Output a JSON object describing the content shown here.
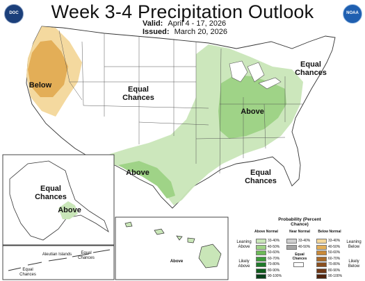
{
  "header": {
    "title": "Week 3-4 Precipitation Outlook",
    "valid_label": "Valid:",
    "valid_value": "April 4 - 17, 2026",
    "issued_label": "Issued:",
    "issued_value": "March 20, 2026"
  },
  "logos": {
    "left": "DOC",
    "right": "NOAA"
  },
  "map_labels": {
    "below": "Below",
    "equal_west": "Equal Chances",
    "above_south": "Above",
    "above_east": "Above",
    "equal_ne": "Equal Chances",
    "equal_se": "Equal Chances",
    "equal_ak": "Equal Chances",
    "above_ak": "Above",
    "aleutian": "Aleutian Islands",
    "equal_aleutian_1": "Equal Chances",
    "equal_aleutian_2": "Equal Chances",
    "above_hi": "Above"
  },
  "legend": {
    "title": "Probability (Percent Chance)",
    "above_head": "Above Normal",
    "near_head": "Near Normal",
    "below_head": "Below Normal",
    "equal_head": "Equal Chances",
    "leaning_above": "Leaning Above",
    "likely_above": "Likely Above",
    "leaning_below": "Leaning Below",
    "likely_below": "Likely Below",
    "above_rows": [
      "33-40%",
      "40-50%",
      "50-60%",
      "60-70%",
      "70-80%",
      "80-90%",
      "90-100%"
    ],
    "near_rows": [
      "33-40%",
      "40-50%"
    ],
    "below_rows": [
      "33-40%",
      "40-50%",
      "50-60%",
      "60-70%",
      "70-80%",
      "80-90%",
      "90-100%"
    ],
    "above_colors": [
      "#c9e6b8",
      "#9fd387",
      "#6dba59",
      "#3c9a3a",
      "#1f7a2a",
      "#0f5c1d",
      "#08401a"
    ],
    "near_colors": [
      "#cfcfcf",
      "#a3a3a3"
    ],
    "below_colors": [
      "#f3d79a",
      "#e3ae57",
      "#c98a3a",
      "#a96b2a",
      "#8a4f1f",
      "#6e3716",
      "#4f230e"
    ]
  }
}
